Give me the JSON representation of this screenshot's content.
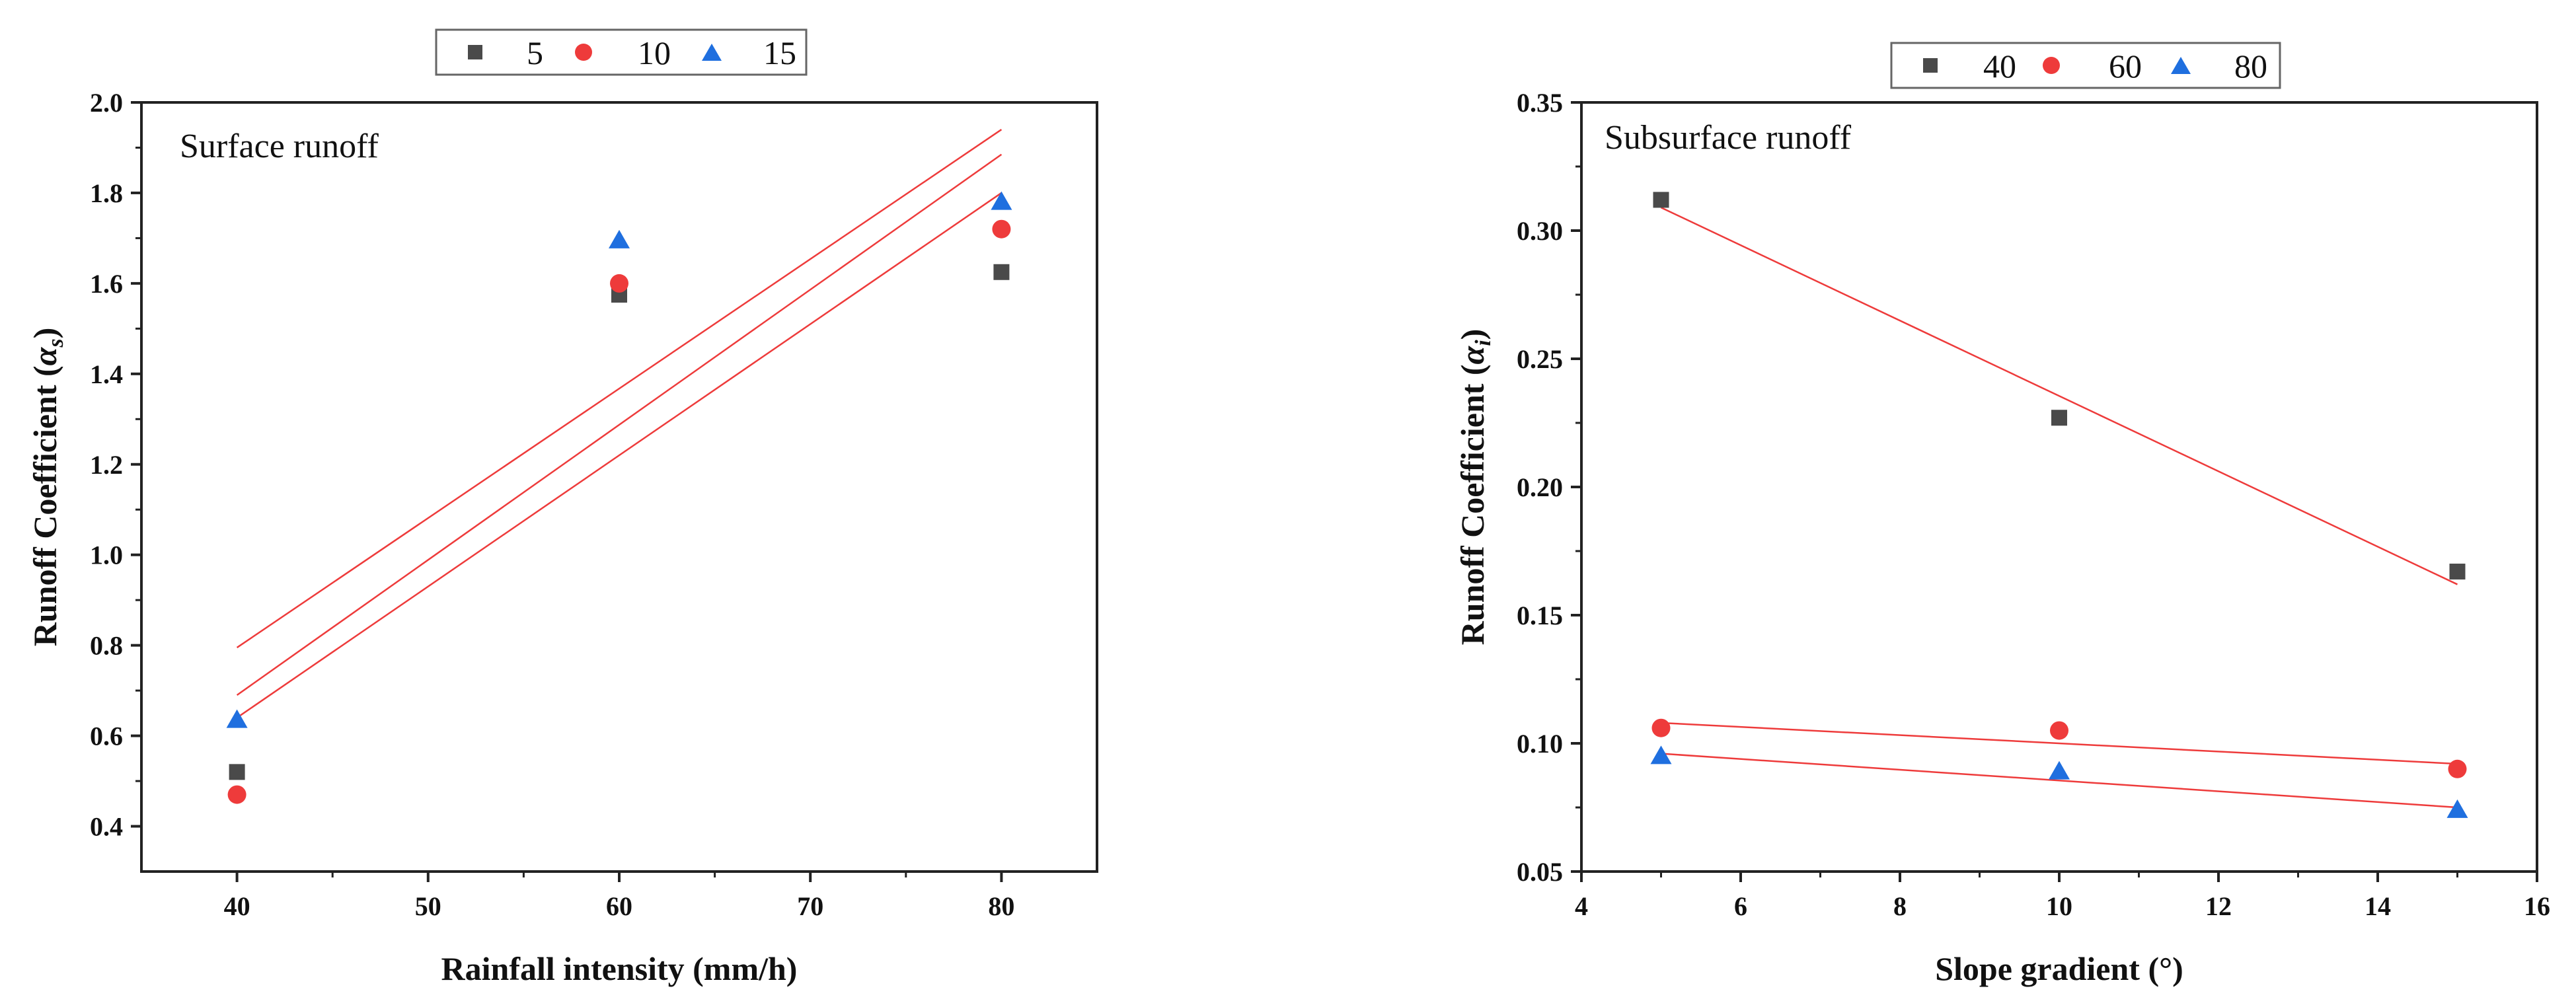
{
  "colors": {
    "square": "#4a4a4a",
    "circle": "#ee3b3b",
    "triangle": "#1f6fdf",
    "fit": "#ee3b3b",
    "axis": "#222222"
  },
  "chart_data": [
    {
      "type": "scatter",
      "annotation": "Surface runoff",
      "xlabel": "Rainfall intensity (mm/h)",
      "ylabel_main": "Runoff Coefficient (",
      "ylabel_symbol": "α",
      "ylabel_sub": "s",
      "ylabel_close": ")",
      "xlim": [
        35,
        85
      ],
      "ylim": [
        0.3,
        2.0
      ],
      "xticks": [
        40,
        50,
        60,
        70,
        80
      ],
      "xtick_labels": [
        "40",
        "50",
        "60",
        "70",
        "80"
      ],
      "yticks": [
        0.4,
        0.6,
        0.8,
        1.0,
        1.2,
        1.4,
        1.6,
        1.8,
        2.0
      ],
      "ytick_labels": [
        "0.4",
        "0.6",
        "0.8",
        "1.0",
        "1.2",
        "1.4",
        "1.6",
        "1.8",
        "2.0"
      ],
      "legend": [
        "5",
        "10",
        "15"
      ],
      "series": [
        {
          "name": "5",
          "marker": "square",
          "x": [
            40,
            60,
            80
          ],
          "y": [
            0.52,
            1.575,
            1.625
          ]
        },
        {
          "name": "10",
          "marker": "circle",
          "x": [
            40,
            60,
            80
          ],
          "y": [
            0.47,
            1.6,
            1.72
          ]
        },
        {
          "name": "15",
          "marker": "triangle",
          "x": [
            40,
            60,
            80
          ],
          "y": [
            0.635,
            1.695,
            1.78
          ]
        }
      ],
      "fits": [
        {
          "x": [
            40,
            80
          ],
          "y": [
            0.64,
            1.8
          ]
        },
        {
          "x": [
            40,
            80
          ],
          "y": [
            0.69,
            1.885
          ]
        },
        {
          "x": [
            40,
            80
          ],
          "y": [
            0.795,
            1.94
          ]
        }
      ]
    },
    {
      "type": "scatter",
      "annotation": "Subsurface runoff",
      "xlabel": "Slope gradient (°)",
      "ylabel_main": "Runoff Coefficient (",
      "ylabel_symbol": "α",
      "ylabel_sub": "i",
      "ylabel_close": ")",
      "xlim": [
        4,
        16
      ],
      "ylim": [
        0.05,
        0.35
      ],
      "xticks": [
        4,
        6,
        8,
        10,
        12,
        14,
        16
      ],
      "xtick_labels": [
        "4",
        "6",
        "8",
        "10",
        "12",
        "14",
        "16"
      ],
      "yticks": [
        0.05,
        0.1,
        0.15,
        0.2,
        0.25,
        0.3,
        0.35
      ],
      "ytick_labels": [
        "0.05",
        "0.10",
        "0.15",
        "0.20",
        "0.25",
        "0.30",
        "0.35"
      ],
      "legend": [
        "40",
        "60",
        "80"
      ],
      "series": [
        {
          "name": "40",
          "marker": "square",
          "x": [
            5,
            10,
            15
          ],
          "y": [
            0.312,
            0.227,
            0.167
          ]
        },
        {
          "name": "60",
          "marker": "circle",
          "x": [
            5,
            10,
            15
          ],
          "y": [
            0.106,
            0.105,
            0.09
          ]
        },
        {
          "name": "80",
          "marker": "triangle",
          "x": [
            5,
            10,
            15
          ],
          "y": [
            0.095,
            0.089,
            0.074
          ]
        }
      ],
      "fits": [
        {
          "x": [
            5,
            15
          ],
          "y": [
            0.309,
            0.162
          ]
        },
        {
          "x": [
            5,
            15
          ],
          "y": [
            0.108,
            0.092
          ]
        },
        {
          "x": [
            5,
            15
          ],
          "y": [
            0.096,
            0.075
          ]
        }
      ]
    }
  ]
}
